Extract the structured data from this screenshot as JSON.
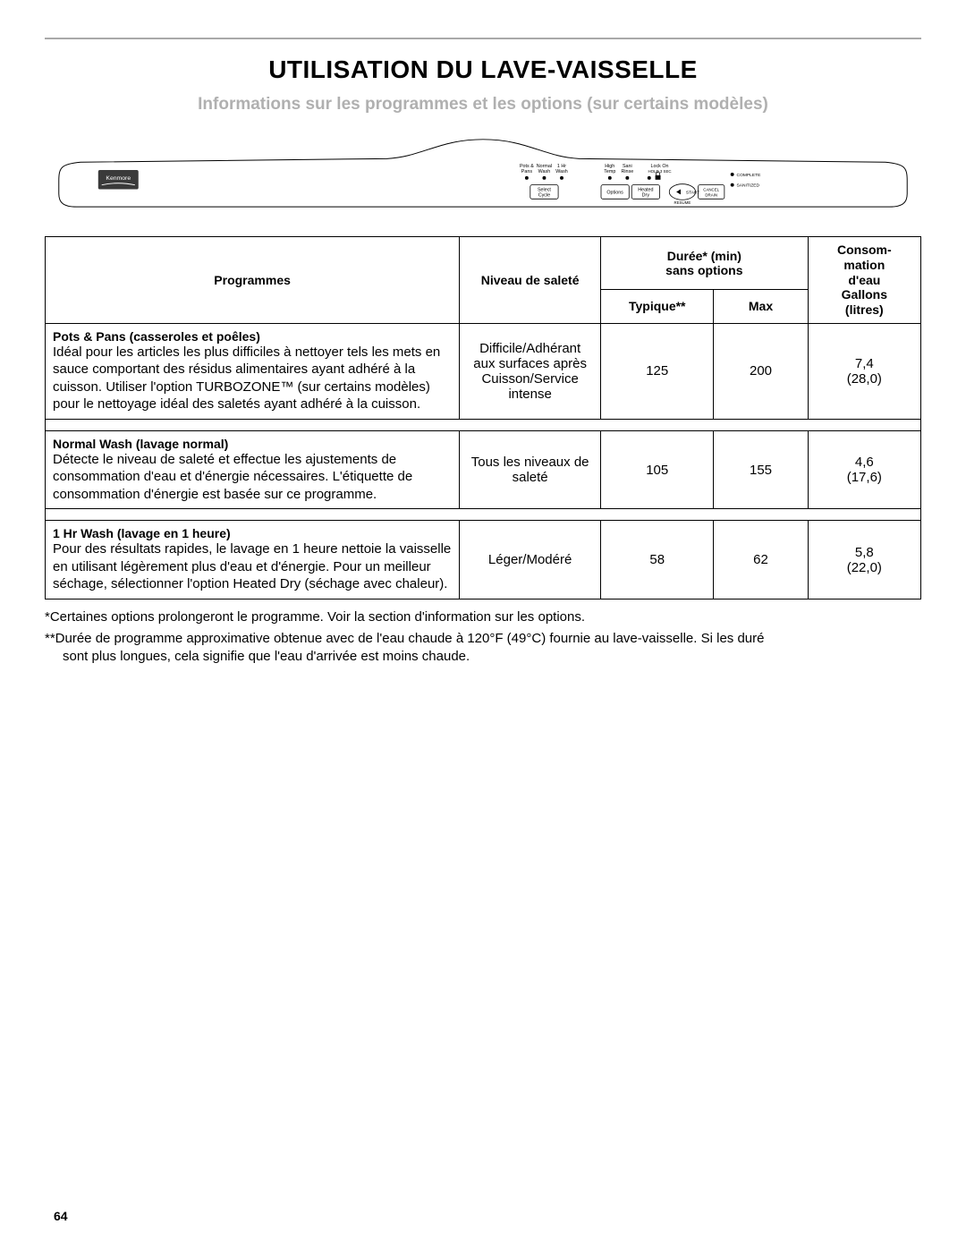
{
  "title": "UTILISATION DU LAVE-VAISSELLE",
  "subtitle": "Informations sur les programmes et les options (sur certains modèles)",
  "page_number": "64",
  "panel": {
    "brand": "Kenmore",
    "cycle_labels": [
      "Pots &",
      "Normal",
      "1 Hr"
    ],
    "cycle_labels2": [
      "Pans",
      "Wash",
      "Wash"
    ],
    "select_cycle": "Select\nCycle",
    "opt_labels": [
      "High",
      "Sani"
    ],
    "opt_labels2": [
      "Temp",
      "Rinse"
    ],
    "lock_label": "Lock On",
    "lock_label2": "HOLD 3 SEC",
    "options_btn": "Options",
    "heated_dry": "Heated\nDry",
    "start_btn": "START",
    "cancel_btn": "CANCEL\nDRAIN",
    "resume": "RESUME",
    "status_complete": "COMPLETE",
    "status_sanitized": "SANITIZED"
  },
  "table": {
    "headers": {
      "programmes": "Programmes",
      "niveau": "Niveau de saleté",
      "duree_group": "Durée* (min)\nsans options",
      "typique": "Typique**",
      "max": "Max",
      "consom": "Consom-\nmation\nd'eau\nGallons\n(litres)"
    },
    "rows": [
      {
        "name": "Pots & Pans (casseroles et poêles)",
        "desc": "Idéal pour les articles les plus difficiles à nettoyer tels les mets en sauce comportant des résidus alimentaires ayant adhéré à la cuisson. Utiliser l'option TURBOZONE™ (sur certains modèles) pour le nettoyage idéal des saletés ayant adhéré à la cuisson.",
        "soil": "Difficile/Adhérant aux surfaces après Cuisson/Service intense",
        "typ": "125",
        "max": "200",
        "water": "7,4\n(28,0)"
      },
      {
        "name": "Normal Wash (lavage normal)",
        "desc": "Détecte le niveau de saleté et effectue les ajustements de consommation d'eau et d'énergie nécessaires. L'étiquette de consommation d'énergie est basée sur ce programme.",
        "soil": "Tous les niveaux de saleté",
        "typ": "105",
        "max": "155",
        "water": "4,6\n(17,6)"
      },
      {
        "name": "1 Hr Wash (lavage en 1 heure)",
        "desc": "Pour des résultats rapides, le lavage en 1 heure nettoie la vaisselle en utilisant légèrement plus d'eau et d'énergie. Pour un meilleur séchage, sélectionner l'option Heated Dry (séchage avec chaleur).",
        "soil": "Léger/Modéré",
        "typ": "58",
        "max": "62",
        "water": "5,8\n(22,0)"
      }
    ]
  },
  "footnotes": {
    "f1": "*Certaines options prolongeront le programme. Voir la section d'information sur les options.",
    "f2a": "**Durée de programme approximative obtenue avec de l'eau chaude à 120°F (49°C) fournie au lave-vaisselle. Si les duré",
    "f2b": "sont plus longues, cela signifie que l'eau d'arrivée est moins chaude."
  }
}
